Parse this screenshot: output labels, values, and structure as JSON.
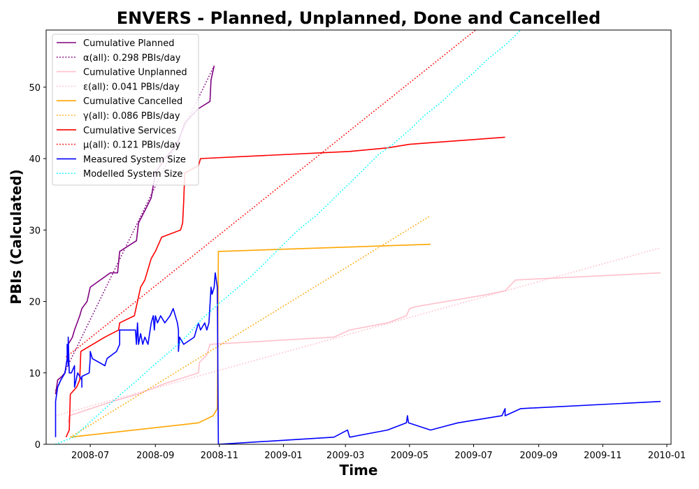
{
  "chart_data": {
    "type": "line",
    "title": "ENVERS - Planned, Unplanned, Done  and Cancelled",
    "xlabel": "Time",
    "ylabel": "PBIs (Calculated)",
    "xlim": [
      "2008-05-20",
      "2010-01-05"
    ],
    "ylim": [
      0,
      58
    ],
    "x_ticks": [
      "2008-07",
      "2008-09",
      "2008-11",
      "2009-01",
      "2009-03",
      "2009-05",
      "2009-07",
      "2009-09",
      "2009-11",
      "2010-01"
    ],
    "y_ticks": [
      0,
      10,
      20,
      30,
      40,
      50
    ],
    "grid": false,
    "legend_position": "upper-left",
    "series": [
      {
        "name": "Cumulative Planned",
        "color": "#800080",
        "style": "solid",
        "points": [
          [
            "2008-05-29",
            7
          ],
          [
            "2008-05-31",
            9
          ],
          [
            "2008-06-04",
            9.5
          ],
          [
            "2008-06-07",
            10
          ],
          [
            "2008-06-09",
            12
          ],
          [
            "2008-06-10",
            14
          ],
          [
            "2008-06-14",
            15
          ],
          [
            "2008-06-16",
            16
          ],
          [
            "2008-06-21",
            18
          ],
          [
            "2008-06-23",
            19
          ],
          [
            "2008-06-28",
            20
          ],
          [
            "2008-07-01",
            22
          ],
          [
            "2008-07-20",
            24
          ],
          [
            "2008-07-27",
            24
          ],
          [
            "2008-07-29",
            27
          ],
          [
            "2008-08-14",
            28.5
          ],
          [
            "2008-08-16",
            31
          ],
          [
            "2008-08-23",
            33
          ],
          [
            "2008-08-28",
            34.5
          ],
          [
            "2008-09-01",
            38
          ],
          [
            "2008-09-10",
            40
          ],
          [
            "2008-09-22",
            42
          ],
          [
            "2008-09-29",
            45
          ],
          [
            "2008-10-12",
            47
          ],
          [
            "2008-10-23",
            48
          ],
          [
            "2008-10-24",
            51
          ],
          [
            "2008-10-27",
            53
          ]
        ]
      },
      {
        "name": "α(all): 0.298 PBIs/day",
        "color": "#800080",
        "style": "dotted",
        "points": [
          [
            "2008-05-29",
            7.5
          ],
          [
            "2008-10-27",
            53
          ]
        ]
      },
      {
        "name": "Cumulative Unplanned",
        "color": "#ffc0cb",
        "style": "solid",
        "points": [
          [
            "2008-06-10",
            3
          ],
          [
            "2008-06-11",
            4
          ],
          [
            "2008-07-22",
            6
          ],
          [
            "2008-08-15",
            7
          ],
          [
            "2008-09-10",
            8.5
          ],
          [
            "2008-10-12",
            10
          ],
          [
            "2008-10-13",
            11.5
          ],
          [
            "2008-10-20",
            12.5
          ],
          [
            "2008-10-23",
            14
          ],
          [
            "2009-02-18",
            15
          ],
          [
            "2009-03-05",
            16
          ],
          [
            "2009-04-10",
            17
          ],
          [
            "2009-04-28",
            18
          ],
          [
            "2009-05-01",
            19
          ],
          [
            "2009-05-08",
            19.3
          ],
          [
            "2009-07-15",
            21
          ],
          [
            "2009-07-31",
            21.5
          ],
          [
            "2009-08-10",
            23
          ],
          [
            "2009-12-26",
            24
          ]
        ]
      },
      {
        "name": "ε(all): 0.041 PBIs/day",
        "color": "#ffc0cb",
        "style": "dotted",
        "points": [
          [
            "2008-05-29",
            4
          ],
          [
            "2009-12-26",
            27.5
          ]
        ]
      },
      {
        "name": "Cumulative Cancelled",
        "color": "#ffa500",
        "style": "solid",
        "points": [
          [
            "2008-06-12",
            1
          ],
          [
            "2008-10-12",
            3
          ],
          [
            "2008-10-26",
            4
          ],
          [
            "2008-10-30",
            5
          ],
          [
            "2008-10-31",
            27
          ],
          [
            "2009-05-21",
            28
          ]
        ]
      },
      {
        "name": "γ(all): 0.086 PBIs/day",
        "color": "#ffa500",
        "style": "dotted",
        "points": [
          [
            "2008-06-12",
            1
          ],
          [
            "2009-05-21",
            32
          ]
        ]
      },
      {
        "name": "Cumulative Services",
        "color": "#ff0000",
        "style": "solid",
        "points": [
          [
            "2008-06-08",
            1
          ],
          [
            "2008-06-11",
            2
          ],
          [
            "2008-06-12",
            7
          ],
          [
            "2008-06-18",
            8
          ],
          [
            "2008-06-21",
            9
          ],
          [
            "2008-06-22",
            13
          ],
          [
            "2008-07-15",
            15
          ],
          [
            "2008-07-28",
            16
          ],
          [
            "2008-07-29",
            17
          ],
          [
            "2008-08-12",
            18
          ],
          [
            "2008-08-15",
            20
          ],
          [
            "2008-08-18",
            22
          ],
          [
            "2008-08-22",
            23
          ],
          [
            "2008-08-28",
            26
          ],
          [
            "2008-09-01",
            27
          ],
          [
            "2008-09-04",
            28
          ],
          [
            "2008-09-07",
            29
          ],
          [
            "2008-09-25",
            30
          ],
          [
            "2008-09-27",
            31
          ],
          [
            "2008-09-28",
            34
          ],
          [
            "2008-09-29",
            38
          ],
          [
            "2008-10-12",
            39
          ],
          [
            "2008-10-14",
            40
          ],
          [
            "2009-03-05",
            41
          ],
          [
            "2009-04-10",
            41.5
          ],
          [
            "2009-05-01",
            42
          ],
          [
            "2009-07-31",
            43
          ]
        ]
      },
      {
        "name": "μ(all): 0.121 PBIs/day",
        "color": "#ff0000",
        "style": "dotted",
        "points": [
          [
            "2008-06-08",
            12.2
          ],
          [
            "2009-07-31",
            61.3
          ]
        ]
      },
      {
        "name": "Measured System Size",
        "color": "#0000ff",
        "style": "solid",
        "points": [
          [
            "2008-05-29",
            1
          ],
          [
            "2008-05-29",
            6
          ],
          [
            "2008-05-31",
            8
          ],
          [
            "2008-06-03",
            9
          ],
          [
            "2008-06-07",
            10
          ],
          [
            "2008-06-09",
            12
          ],
          [
            "2008-06-09",
            14
          ],
          [
            "2008-06-10",
            11
          ],
          [
            "2008-06-10",
            15
          ],
          [
            "2008-06-11",
            10
          ],
          [
            "2008-06-13",
            10
          ],
          [
            "2008-06-16",
            11
          ],
          [
            "2008-06-16",
            8
          ],
          [
            "2008-06-19",
            10
          ],
          [
            "2008-06-23",
            9
          ],
          [
            "2008-06-23",
            8
          ],
          [
            "2008-06-23",
            9.5
          ],
          [
            "2008-06-30",
            10
          ],
          [
            "2008-07-01",
            12
          ],
          [
            "2008-07-01",
            13
          ],
          [
            "2008-07-03",
            12
          ],
          [
            "2008-07-15",
            11
          ],
          [
            "2008-07-17",
            12
          ],
          [
            "2008-07-26",
            13
          ],
          [
            "2008-07-29",
            14
          ],
          [
            "2008-07-29",
            16
          ],
          [
            "2008-08-13",
            16
          ],
          [
            "2008-08-14",
            14
          ],
          [
            "2008-08-15",
            17
          ],
          [
            "2008-08-16",
            14
          ],
          [
            "2008-08-18",
            15.5
          ],
          [
            "2008-08-20",
            14
          ],
          [
            "2008-08-22",
            15
          ],
          [
            "2008-08-25",
            14
          ],
          [
            "2008-08-28",
            17
          ],
          [
            "2008-08-30",
            18
          ],
          [
            "2008-08-31",
            16
          ],
          [
            "2008-09-01",
            18
          ],
          [
            "2008-09-03",
            17
          ],
          [
            "2008-09-06",
            18
          ],
          [
            "2008-09-10",
            17
          ],
          [
            "2008-09-15",
            18
          ],
          [
            "2008-09-18",
            19
          ],
          [
            "2008-09-22",
            17
          ],
          [
            "2008-09-23",
            16
          ],
          [
            "2008-09-23",
            13
          ],
          [
            "2008-09-24",
            15
          ],
          [
            "2008-09-28",
            14
          ],
          [
            "2008-10-08",
            15
          ],
          [
            "2008-10-10",
            16
          ],
          [
            "2008-10-12",
            17
          ],
          [
            "2008-10-14",
            16
          ],
          [
            "2008-10-18",
            17
          ],
          [
            "2008-10-20",
            16
          ],
          [
            "2008-10-22",
            17
          ],
          [
            "2008-10-24",
            22
          ],
          [
            "2008-10-25",
            21
          ],
          [
            "2008-10-27",
            22
          ],
          [
            "2008-10-28",
            24
          ],
          [
            "2008-10-30",
            22
          ],
          [
            "2008-10-31",
            0
          ],
          [
            "2009-02-18",
            1
          ],
          [
            "2009-03-03",
            2
          ],
          [
            "2009-03-05",
            1
          ],
          [
            "2009-04-10",
            2
          ],
          [
            "2009-04-28",
            3
          ],
          [
            "2009-04-29",
            4
          ],
          [
            "2009-04-30",
            3
          ],
          [
            "2009-05-21",
            2
          ],
          [
            "2009-06-16",
            3
          ],
          [
            "2009-07-28",
            4
          ],
          [
            "2009-07-31",
            5
          ],
          [
            "2009-07-31",
            4
          ],
          [
            "2009-08-15",
            5
          ],
          [
            "2009-12-26",
            6
          ]
        ]
      },
      {
        "name": "Modelled System Size",
        "color": "#00ffff",
        "style": "dotted",
        "points": [
          [
            "2008-05-29",
            0
          ],
          [
            "2008-06-15",
            1
          ],
          [
            "2008-06-30",
            3
          ],
          [
            "2008-07-15",
            5
          ],
          [
            "2008-07-30",
            7
          ],
          [
            "2008-08-15",
            9
          ],
          [
            "2008-08-30",
            11
          ],
          [
            "2008-09-15",
            13
          ],
          [
            "2008-09-30",
            15
          ],
          [
            "2008-10-15",
            17.5
          ],
          [
            "2008-10-30",
            19.5
          ],
          [
            "2008-11-15",
            21.5
          ],
          [
            "2008-12-01",
            23.5
          ],
          [
            "2008-12-15",
            25.5
          ],
          [
            "2009-01-01",
            28
          ],
          [
            "2009-01-15",
            30
          ],
          [
            "2009-02-01",
            32
          ],
          [
            "2009-02-15",
            34
          ],
          [
            "2009-03-01",
            36
          ],
          [
            "2009-03-15",
            38
          ],
          [
            "2009-04-01",
            40.5
          ],
          [
            "2009-04-15",
            42
          ],
          [
            "2009-05-01",
            44
          ],
          [
            "2009-05-15",
            46
          ],
          [
            "2009-06-01",
            48
          ],
          [
            "2009-06-15",
            50
          ],
          [
            "2009-07-01",
            52
          ],
          [
            "2009-07-15",
            54
          ],
          [
            "2009-08-01",
            56
          ],
          [
            "2009-08-15",
            58
          ]
        ]
      }
    ]
  }
}
